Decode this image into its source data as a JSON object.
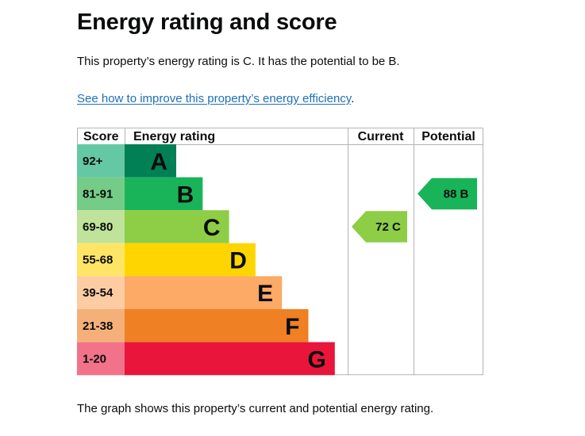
{
  "page": {
    "title": "Energy rating and score",
    "summary": "This property’s energy rating is C. It has the potential to be B.",
    "improve_link": "See how to improve this property’s energy efficiency",
    "improve_suffix": ".",
    "footnote": "The graph shows this property’s current and potential energy rating."
  },
  "chart_data": {
    "type": "bar",
    "headers": {
      "score": "Score",
      "rating": "Energy rating",
      "current": "Current",
      "potential": "Potential"
    },
    "bands": [
      {
        "letter": "A",
        "score": "92+",
        "color": "#008054",
        "score_bg": "#64c8a4"
      },
      {
        "letter": "B",
        "score": "81-91",
        "color": "#19b459",
        "score_bg": "#75cb88"
      },
      {
        "letter": "C",
        "score": "69-80",
        "color": "#8dce46",
        "score_bg": "#bfe39a"
      },
      {
        "letter": "D",
        "score": "55-68",
        "color": "#ffd500",
        "score_bg": "#ffe566"
      },
      {
        "letter": "E",
        "score": "39-54",
        "color": "#fcaa65",
        "score_bg": "#fdcca3"
      },
      {
        "letter": "F",
        "score": "21-38",
        "color": "#ef8023",
        "score_bg": "#f5b07a"
      },
      {
        "letter": "G",
        "score": "1-20",
        "color": "#e9153b",
        "score_bg": "#f27389"
      }
    ],
    "current": {
      "score": 72,
      "band": "C",
      "label": "72 C",
      "color": "#8dce46"
    },
    "potential": {
      "score": 88,
      "band": "B",
      "label": "88 B",
      "color": "#19b459"
    }
  }
}
